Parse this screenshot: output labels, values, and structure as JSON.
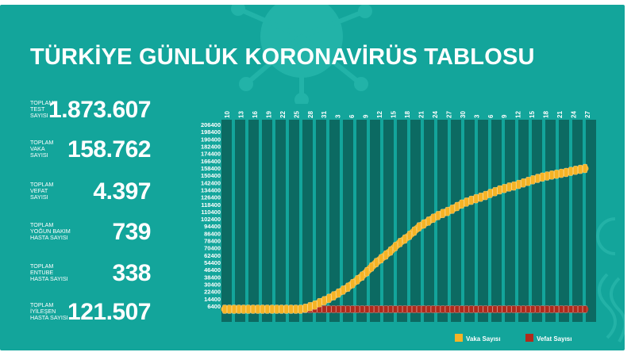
{
  "title": "TÜRKİYE GÜNLÜK KORONAVİRÜS TABLOSU",
  "stats": [
    {
      "label": "TOPLAM\nTEST\nSAYISI",
      "value": "1.873.607"
    },
    {
      "label": "TOPLAM\nVAKA\nSAYISI",
      "value": "158.762"
    },
    {
      "label": "TOPLAM\nVEFAT\nSAYISI",
      "value": "4.397"
    },
    {
      "label": "TOPLAM\nYOĞUN BAKIM\nHASTA SAYISI",
      "value": "739"
    },
    {
      "label": "TOPLAM\nENTUBE\nHASTA SAYISI",
      "value": "338"
    },
    {
      "label": "TOPLAM\nİYİLEŞEN\nHASTA SAYISI",
      "value": "121.507"
    }
  ],
  "colors": {
    "background": "#13a59b",
    "bars": "#0c5f58",
    "vaka": "#f5b325",
    "vefat": "#b02a1c",
    "text": "#ffffff"
  },
  "chart_data": {
    "type": "line",
    "x_tick_labels": [
      "10",
      "13",
      "16",
      "19",
      "22",
      "25",
      "28",
      "31",
      "3",
      "6",
      "9",
      "12",
      "15",
      "18",
      "21",
      "24",
      "27",
      "30",
      "3",
      "6",
      "9",
      "12",
      "15",
      "18",
      "21",
      "24",
      "27"
    ],
    "y_tick_labels": [
      "206400",
      "198400",
      "190400",
      "182400",
      "174400",
      "166400",
      "158400",
      "150400",
      "142400",
      "134400",
      "126400",
      "118400",
      "110400",
      "102400",
      "94400",
      "86400",
      "78400",
      "70400",
      "62400",
      "54400",
      "46400",
      "38400",
      "30400",
      "22400",
      "14400",
      "6400"
    ],
    "ylim": [
      6400,
      206400
    ],
    "grid": "vertical bars",
    "legend_position": "bottom-right",
    "series": [
      {
        "name": "Vaka Sayısı",
        "color": "#f5b325",
        "values": [
          1,
          1,
          5,
          6,
          18,
          47,
          98,
          191,
          359,
          670,
          947,
          1236,
          1529,
          1872,
          2433,
          3629,
          5698,
          7402,
          9217,
          10827,
          13531,
          15679,
          18135,
          20921,
          23934,
          27069,
          30217,
          34109,
          38226,
          42282,
          47029,
          52167,
          56956,
          61049,
          65111,
          69392,
          74193,
          78546,
          82329,
          86306,
          90980,
          95591,
          98674,
          101790,
          104912,
          107773,
          110130,
          112261,
          114653,
          117589,
          120204,
          122392,
          124375,
          126045,
          127659,
          129491,
          131744,
          133721,
          135569,
          137115,
          138657,
          139771,
          141475,
          143114,
          144749,
          146457,
          148067,
          149435,
          150593,
          151615,
          152587,
          153548,
          154500,
          155686,
          156827,
          157814,
          158762
        ]
      },
      {
        "name": "Vefat Sayısı",
        "color": "#b02a1c",
        "values": [
          0,
          0,
          0,
          0,
          0,
          0,
          0,
          1,
          2,
          4,
          9,
          21,
          30,
          37,
          44,
          59,
          75,
          92,
          108,
          131,
          168,
          214,
          277,
          356,
          425,
          501,
          574,
          649,
          725,
          812,
          908,
          1006,
          1101,
          1198,
          1296,
          1403,
          1518,
          1643,
          1769,
          1890,
          2017,
          2140,
          2259,
          2376,
          2491,
          2600,
          2706,
          2805,
          2900,
          2992,
          3081,
          3174,
          3258,
          3336,
          3397,
          3461,
          3520,
          3584,
          3641,
          3689,
          3739,
          3786,
          3841,
          3894,
          3952,
          4007,
          4055,
          4096,
          4140,
          4171,
          4199,
          4222,
          4249,
          4276,
          4308,
          4340,
          4397
        ]
      }
    ]
  }
}
